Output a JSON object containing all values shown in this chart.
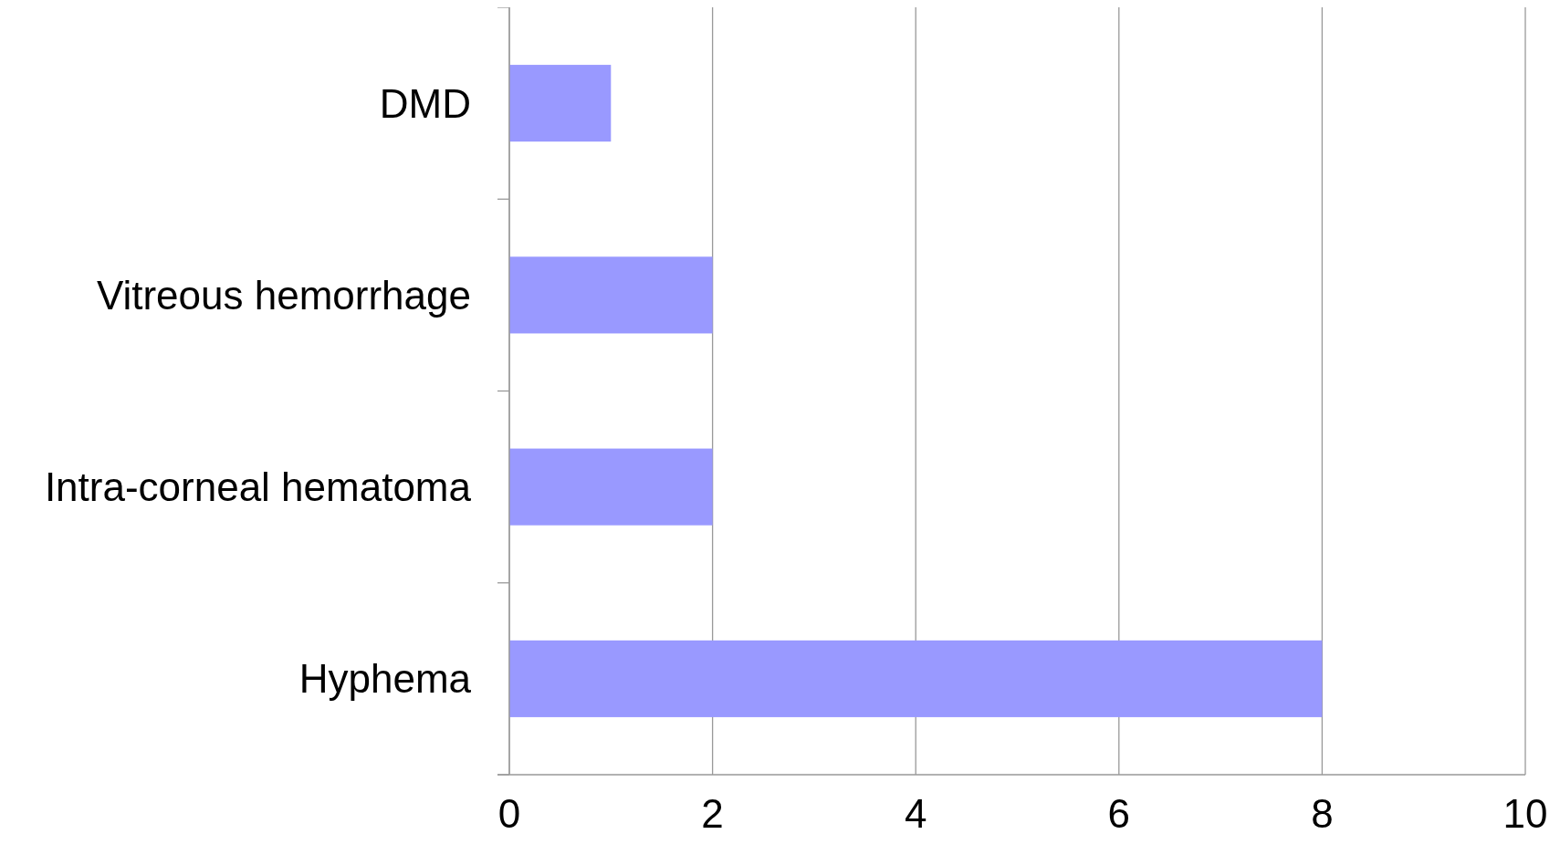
{
  "chart_data": {
    "type": "bar",
    "orientation": "horizontal",
    "categories": [
      "DMD",
      "Vitreous hemorrhage",
      "Intra-corneal hematoma",
      "Hyphema"
    ],
    "values": [
      1,
      2,
      2,
      8
    ],
    "color": "#9999ff",
    "xlim": [
      0,
      10
    ],
    "xticks": [
      0,
      2,
      4,
      6,
      8,
      10
    ],
    "grid": "x"
  }
}
